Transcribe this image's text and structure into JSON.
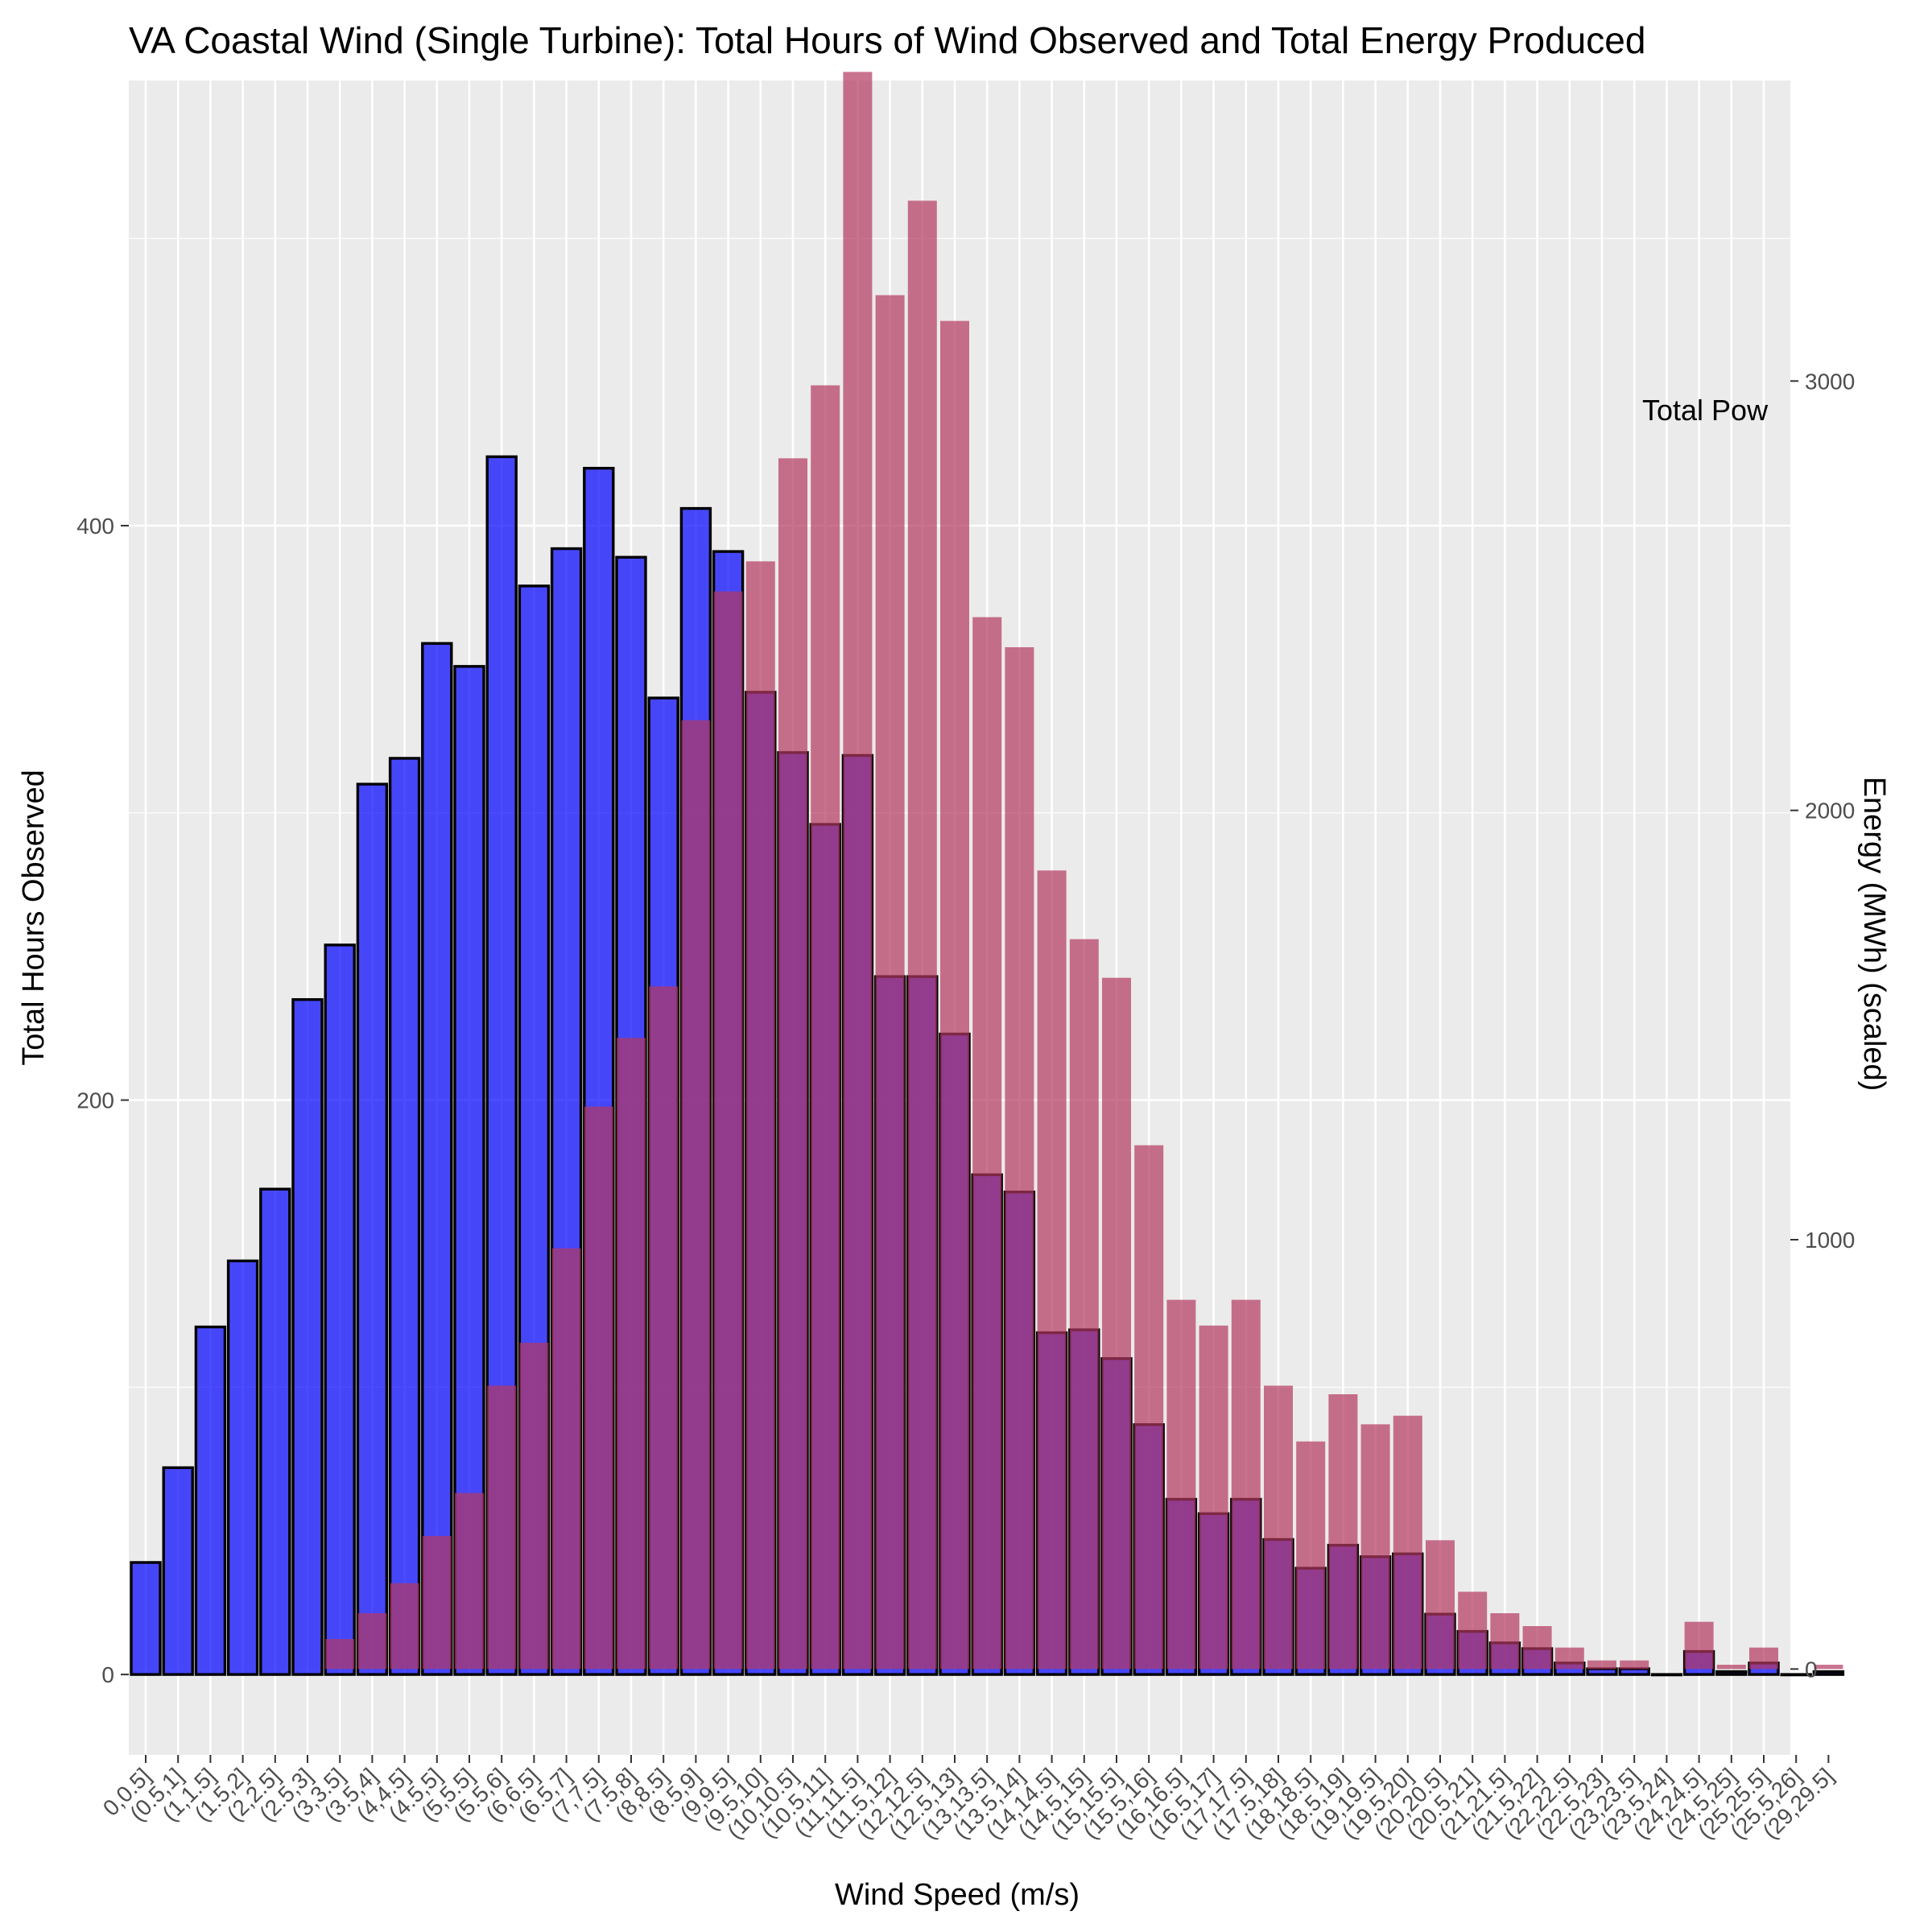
{
  "chart_data": {
    "type": "bar",
    "title": "VA Coastal Wind (Single Turbine): Total Hours of Wind Observed and Total Energy Produced",
    "xlabel": "Wind Speed (m/s)",
    "ylabel": "Total Hours Observed",
    "y2label": "Energy (MWh) (scaled)",
    "legend_title": "Total Pow",
    "ylim": [
      -28,
      555
    ],
    "y2lim": [
      -200,
      3700
    ],
    "y_ticks": [
      0,
      200,
      400
    ],
    "y2_ticks": [
      0,
      1000,
      2000,
      3000
    ],
    "grid": true,
    "categories": [
      "0,0.5]",
      "(0.5,1]",
      "(1,1.5]",
      "(1.5,2]",
      "(2,2.5]",
      "(2.5,3]",
      "(3,3.5]",
      "(3.5,4]",
      "(4,4.5]",
      "(4.5,5]",
      "(5,5.5]",
      "(5.5,6]",
      "(6,6.5]",
      "(6.5,7]",
      "(7,7.5]",
      "(7.5,8]",
      "(8,8.5]",
      "(8.5,9]",
      "(9,9.5]",
      "(9.5,10]",
      "(10,10.5]",
      "(10.5,11]",
      "(11,11.5]",
      "(11.5,12]",
      "(12,12.5]",
      "(12.5,13]",
      "(13,13.5]",
      "(13.5,14]",
      "(14,14.5]",
      "(14.5,15]",
      "(15,15.5]",
      "(15.5,16]",
      "(16,16.5]",
      "(16.5,17]",
      "(17,17.5]",
      "(17.5,18]",
      "(18,18.5]",
      "(18.5,19]",
      "(19,19.5]",
      "(19.5,20]",
      "(20,20.5]",
      "(20.5,21]",
      "(21,21.5]",
      "(21.5,22]",
      "(22,22.5]",
      "(22.5,23]",
      "(23,23.5]",
      "(23.5,24]",
      "(24,24.5]",
      "(24.5,25]",
      "(25,25.5]",
      "(25.5,26]",
      "(29,29.5]"
    ],
    "series": [
      {
        "axis": "left",
        "color": "#0000ff",
        "values": [
          39,
          72,
          121,
          144,
          169,
          235,
          254,
          310,
          319,
          359,
          351,
          424,
          379,
          392,
          420,
          389,
          340,
          406,
          391,
          342,
          321,
          296,
          320,
          243,
          243,
          223,
          174,
          168,
          119,
          120,
          110,
          87,
          61,
          56,
          61,
          47,
          37,
          45,
          41,
          42,
          21,
          15,
          11,
          9,
          4,
          2,
          2,
          0,
          8,
          1,
          4,
          0,
          1
        ]
      },
      {
        "axis": "right",
        "color": "#b4385f",
        "values": [
          0,
          0,
          0,
          0,
          0,
          0,
          70,
          130,
          200,
          310,
          410,
          660,
          760,
          980,
          1310,
          1470,
          1590,
          2210,
          2510,
          2580,
          2820,
          2990,
          3720,
          3200,
          3420,
          3140,
          2450,
          2380,
          1860,
          1700,
          1610,
          1220,
          860,
          800,
          860,
          660,
          530,
          640,
          570,
          590,
          300,
          180,
          130,
          100,
          50,
          20,
          20,
          0,
          110,
          10,
          50,
          0,
          10
        ]
      }
    ]
  }
}
